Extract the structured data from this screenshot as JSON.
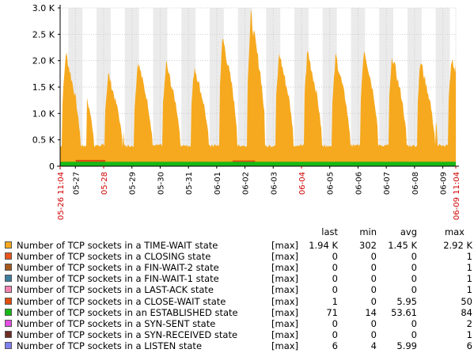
{
  "chart_data": {
    "type": "area",
    "ylim": [
      0,
      3000
    ],
    "y_ticks": [
      {
        "value": 0,
        "label": "0"
      },
      {
        "value": 500,
        "label": "0.5 K"
      },
      {
        "value": 1000,
        "label": "1.0 K"
      },
      {
        "value": 1500,
        "label": "1.5 K"
      },
      {
        "value": 2000,
        "label": "2.0 K"
      },
      {
        "value": 2500,
        "label": "2.5 K"
      },
      {
        "value": 3000,
        "label": "3.0 K"
      }
    ],
    "x_range_days": [
      0,
      14
    ],
    "x_ticks": [
      {
        "day": 0.0,
        "label": "05-26 11:04",
        "red": true
      },
      {
        "day": 0.54,
        "label": "05-27",
        "red": false
      },
      {
        "day": 1.54,
        "label": "05-28",
        "red": true
      },
      {
        "day": 2.54,
        "label": "05-29",
        "red": false
      },
      {
        "day": 3.54,
        "label": "05-30",
        "red": false
      },
      {
        "day": 4.54,
        "label": "05-31",
        "red": false
      },
      {
        "day": 5.54,
        "label": "06-01",
        "red": false
      },
      {
        "day": 6.54,
        "label": "06-02",
        "red": false
      },
      {
        "day": 7.54,
        "label": "06-03",
        "red": false
      },
      {
        "day": 8.54,
        "label": "06-04",
        "red": true
      },
      {
        "day": 9.54,
        "label": "06-05",
        "red": false
      },
      {
        "day": 10.54,
        "label": "06-06",
        "red": false
      },
      {
        "day": 11.54,
        "label": "06-07",
        "red": false
      },
      {
        "day": 12.54,
        "label": "06-08",
        "red": false
      },
      {
        "day": 13.54,
        "label": "06-09",
        "red": false
      },
      {
        "day": 14.0,
        "label": "06-09 11:04",
        "red": true
      }
    ],
    "daily_peaks": [
      {
        "day": 0.2,
        "value": 2200
      },
      {
        "day": 1.7,
        "value": 1800
      },
      {
        "day": 2.75,
        "value": 2050
      },
      {
        "day": 3.75,
        "value": 2000
      },
      {
        "day": 4.75,
        "value": 1950
      },
      {
        "day": 5.75,
        "value": 2500
      },
      {
        "day": 6.75,
        "value": 2920
      },
      {
        "day": 7.75,
        "value": 2200
      },
      {
        "day": 8.75,
        "value": 2250
      },
      {
        "day": 9.75,
        "value": 2150
      },
      {
        "day": 10.75,
        "value": 2300
      },
      {
        "day": 11.75,
        "value": 2150
      },
      {
        "day": 12.75,
        "value": 2050
      },
      {
        "day": 13.85,
        "value": 2100
      }
    ],
    "last_value": 1940,
    "series_colors": {
      "time_wait": "#F6A91E",
      "established": "#16B916",
      "close_wait": "#E04F10"
    },
    "legend": {
      "headers": {
        "last": "last",
        "min": "min",
        "avg": "avg",
        "max": "max"
      },
      "rows": [
        {
          "name": "Number of TCP sockets in a TIME-WAIT state",
          "func": "[max]",
          "last": "1.94 K",
          "min": "302",
          "avg": "1.45 K",
          "max": "2.92 K",
          "color": "#F6A91E"
        },
        {
          "name": "Number of TCP sockets in a CLOSING state",
          "func": "[max]",
          "last": "0",
          "min": "0",
          "avg": "0",
          "max": "1",
          "color": "#E8541C"
        },
        {
          "name": "Number of TCP sockets in a FIN-WAIT-2 state",
          "func": "[max]",
          "last": "0",
          "min": "0",
          "avg": "0",
          "max": "1",
          "color": "#A4581C"
        },
        {
          "name": "Number of TCP sockets in a FIN-WAIT-1 state",
          "func": "[max]",
          "last": "0",
          "min": "0",
          "avg": "0",
          "max": "1",
          "color": "#3E7E9E"
        },
        {
          "name": "Number of TCP sockets in a LAST-ACK state",
          "func": "[max]",
          "last": "0",
          "min": "0",
          "avg": "0",
          "max": "1",
          "color": "#F383B1"
        },
        {
          "name": "Number of TCP sockets in a CLOSE-WAIT state",
          "func": "[max]",
          "last": "1",
          "min": "0",
          "avg": "5.95",
          "max": "50",
          "color": "#E04F10"
        },
        {
          "name": "Number of TCP sockets in an ESTABLISHED state",
          "func": "[max]",
          "last": "71",
          "min": "14",
          "avg": "53.61",
          "max": "84",
          "color": "#16B916"
        },
        {
          "name": "Number of TCP sockets in a SYN-SENT state",
          "func": "[max]",
          "last": "0",
          "min": "0",
          "avg": "0",
          "max": "2",
          "color": "#E24FE2"
        },
        {
          "name": "Number of TCP sockets in a SYN-RECEIVED state",
          "func": "[max]",
          "last": "0",
          "min": "0",
          "avg": "0",
          "max": "1",
          "color": "#6E2C24"
        },
        {
          "name": "Number of TCP sockets in a LISTEN state",
          "func": "[max]",
          "last": "6",
          "min": "4",
          "avg": "5.99",
          "max": "6",
          "color": "#8080F0"
        }
      ]
    }
  }
}
